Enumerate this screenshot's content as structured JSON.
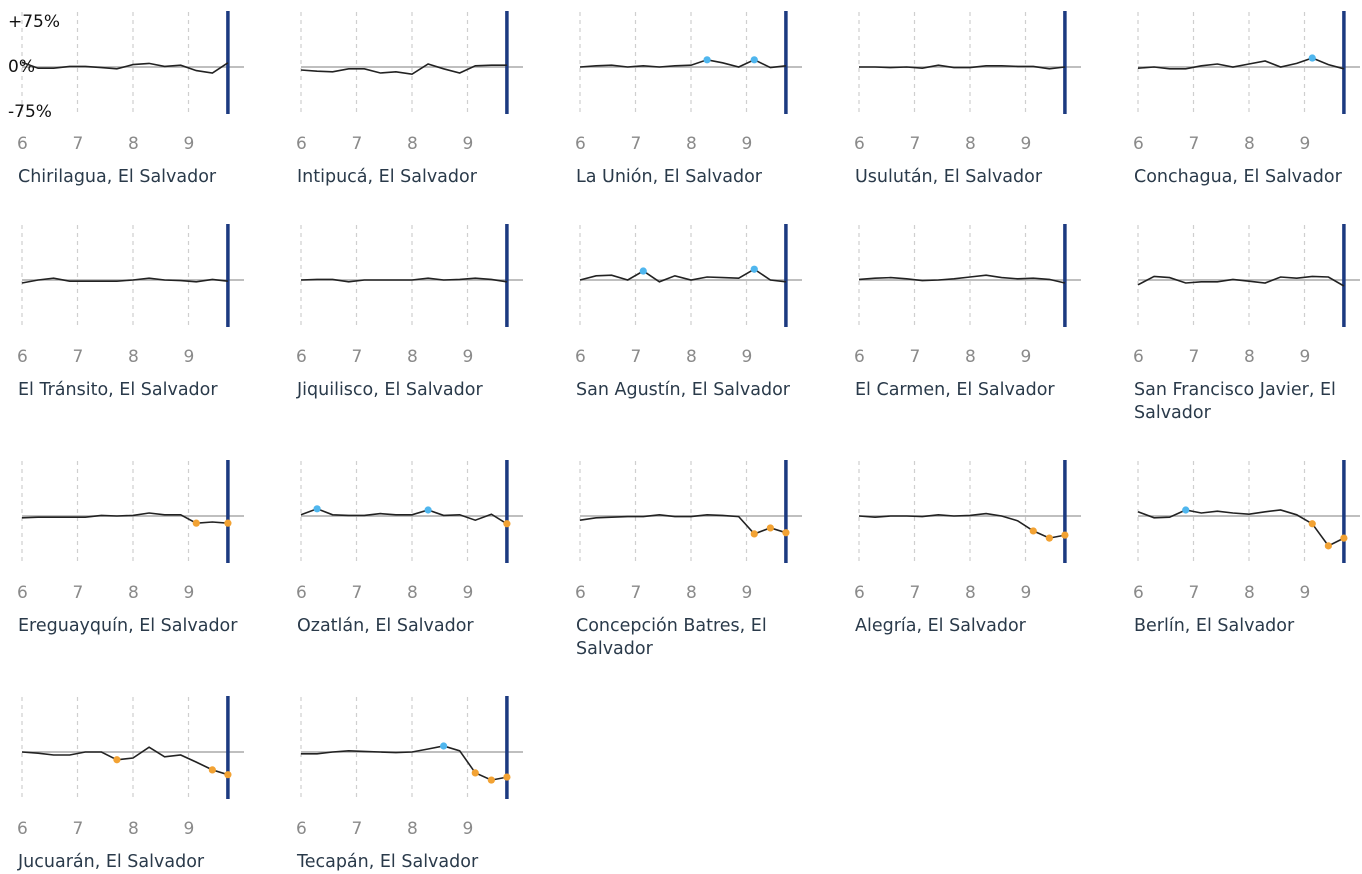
{
  "chart_data": [
    {
      "type": "line",
      "title": "Chirilagua, El Salvador",
      "x": [
        6,
        6.29,
        6.57,
        6.86,
        7.14,
        7.43,
        7.71,
        8,
        8.29,
        8.57,
        8.86,
        9.14,
        9.43,
        9.71
      ],
      "values": [
        8,
        -2,
        -2,
        1,
        1,
        -1,
        -3,
        4,
        6,
        1,
        3,
        -6,
        -10,
        7
      ],
      "point_colors": [
        null,
        null,
        null,
        null,
        null,
        null,
        null,
        null,
        null,
        null,
        null,
        null,
        null,
        null
      ],
      "color": "#222222",
      "marker_color": "#1c3a80",
      "xlim": [
        6,
        10
      ],
      "ylim": [
        -77,
        92
      ],
      "xticks": [
        6,
        7,
        8,
        9
      ],
      "yticks": [
        {
          "value": 75,
          "label": "+75%"
        },
        {
          "value": 0,
          "label": "0%"
        },
        {
          "value": -75,
          "label": "-75%"
        }
      ],
      "zero_line": true,
      "grid": true
    },
    {
      "type": "line",
      "title": "Intipucá, El Salvador",
      "x": [
        6,
        6.29,
        6.57,
        6.86,
        7.14,
        7.43,
        7.71,
        8,
        8.29,
        8.57,
        8.86,
        9.14,
        9.43,
        9.71
      ],
      "values": [
        -5,
        -7,
        -8,
        -3,
        -3,
        -10,
        -8,
        -12,
        5,
        -3,
        -10,
        2,
        3,
        3
      ],
      "point_colors": [
        null,
        null,
        null,
        null,
        null,
        null,
        null,
        null,
        null,
        null,
        null,
        null,
        null,
        null
      ],
      "color": "#222222",
      "marker_color": "#1c3a80",
      "xlim": [
        6,
        10
      ],
      "ylim": [
        -77,
        92
      ],
      "xticks": [
        6,
        7,
        8,
        9
      ],
      "zero_line": true,
      "grid": true
    },
    {
      "type": "line",
      "title": "La Unión, El Salvador",
      "x": [
        6,
        6.29,
        6.57,
        6.86,
        7.14,
        7.43,
        7.71,
        8,
        8.29,
        8.57,
        8.86,
        9.14,
        9.43,
        9.71
      ],
      "values": [
        0,
        2,
        3,
        0,
        2,
        0,
        2,
        3,
        12,
        7,
        0,
        12,
        -1,
        2
      ],
      "point_colors": [
        null,
        null,
        null,
        null,
        null,
        null,
        null,
        null,
        "#4fb6ee",
        null,
        null,
        "#4fb6ee",
        null,
        null
      ],
      "color": "#222222",
      "marker_color": "#1c3a80",
      "xlim": [
        6,
        10
      ],
      "ylim": [
        -77,
        92
      ],
      "xticks": [
        6,
        7,
        8,
        9
      ],
      "zero_line": true,
      "grid": true
    },
    {
      "type": "line",
      "title": "Usulután, El Salvador",
      "x": [
        6,
        6.29,
        6.57,
        6.86,
        7.14,
        7.43,
        7.71,
        8,
        8.29,
        8.57,
        8.86,
        9.14,
        9.43,
        9.71
      ],
      "values": [
        0,
        0,
        -1,
        0,
        -2,
        3,
        -1,
        -1,
        2,
        2,
        1,
        1,
        -3,
        0
      ],
      "point_colors": [
        null,
        null,
        null,
        null,
        null,
        null,
        null,
        null,
        null,
        null,
        null,
        null,
        null,
        null
      ],
      "color": "#222222",
      "marker_color": "#1c3a80",
      "xlim": [
        6,
        10
      ],
      "ylim": [
        -77,
        92
      ],
      "xticks": [
        6,
        7,
        8,
        9
      ],
      "zero_line": true,
      "grid": true
    },
    {
      "type": "line",
      "title": "Conchagua, El Salvador",
      "x": [
        6,
        6.29,
        6.57,
        6.86,
        7.14,
        7.43,
        7.71,
        8,
        8.29,
        8.57,
        8.86,
        9.14,
        9.43,
        9.71
      ],
      "values": [
        -2,
        0,
        -3,
        -3,
        2,
        5,
        0,
        5,
        10,
        0,
        6,
        15,
        4,
        -3
      ],
      "point_colors": [
        null,
        null,
        null,
        null,
        null,
        null,
        null,
        null,
        null,
        null,
        null,
        "#4fb6ee",
        null,
        null
      ],
      "color": "#222222",
      "marker_color": "#1c3a80",
      "xlim": [
        6,
        10
      ],
      "ylim": [
        -77,
        92
      ],
      "xticks": [
        6,
        7,
        8,
        9
      ],
      "zero_line": true,
      "grid": true
    },
    {
      "type": "line",
      "title": "El Tránsito, El Salvador",
      "x": [
        6,
        6.29,
        6.57,
        6.86,
        7.14,
        7.43,
        7.71,
        8,
        8.29,
        8.57,
        8.86,
        9.14,
        9.43,
        9.71
      ],
      "values": [
        -5,
        0,
        3,
        -2,
        -2,
        -2,
        -2,
        0,
        3,
        0,
        -1,
        -3,
        1,
        -2
      ],
      "point_colors": [
        null,
        null,
        null,
        null,
        null,
        null,
        null,
        null,
        null,
        null,
        null,
        null,
        null,
        null
      ],
      "color": "#222222",
      "marker_color": "#1c3a80",
      "xlim": [
        6,
        10
      ],
      "ylim": [
        -77,
        92
      ],
      "xticks": [
        6,
        7,
        8,
        9
      ],
      "zero_line": true,
      "grid": true
    },
    {
      "type": "line",
      "title": "Jiquilisco, El Salvador",
      "x": [
        6,
        6.29,
        6.57,
        6.86,
        7.14,
        7.43,
        7.71,
        8,
        8.29,
        8.57,
        8.86,
        9.14,
        9.43,
        9.71
      ],
      "values": [
        0,
        1,
        1,
        -3,
        0,
        0,
        0,
        0,
        3,
        0,
        1,
        3,
        1,
        -3
      ],
      "point_colors": [
        null,
        null,
        null,
        null,
        null,
        null,
        null,
        null,
        null,
        null,
        null,
        null,
        null,
        null
      ],
      "color": "#222222",
      "marker_color": "#1c3a80",
      "xlim": [
        6,
        10
      ],
      "ylim": [
        -77,
        92
      ],
      "xticks": [
        6,
        7,
        8,
        9
      ],
      "zero_line": true,
      "grid": true
    },
    {
      "type": "line",
      "title": "San Agustín, El Salvador",
      "x": [
        6,
        6.29,
        6.57,
        6.86,
        7.14,
        7.43,
        7.71,
        8,
        8.29,
        8.57,
        8.86,
        9.14,
        9.43,
        9.71
      ],
      "values": [
        0,
        7,
        8,
        0,
        15,
        -3,
        7,
        0,
        5,
        4,
        3,
        18,
        0,
        -3
      ],
      "point_colors": [
        null,
        null,
        null,
        null,
        "#4fb6ee",
        null,
        null,
        null,
        null,
        null,
        null,
        "#4fb6ee",
        null,
        null
      ],
      "color": "#222222",
      "marker_color": "#1c3a80",
      "xlim": [
        6,
        10
      ],
      "ylim": [
        -77,
        92
      ],
      "xticks": [
        6,
        7,
        8,
        9
      ],
      "zero_line": true,
      "grid": true
    },
    {
      "type": "line",
      "title": "El Carmen, El Salvador",
      "x": [
        6,
        6.29,
        6.57,
        6.86,
        7.14,
        7.43,
        7.71,
        8,
        8.29,
        8.57,
        8.86,
        9.14,
        9.43,
        9.71
      ],
      "values": [
        1,
        3,
        4,
        2,
        -1,
        0,
        2,
        5,
        8,
        4,
        2,
        3,
        1,
        -5
      ],
      "point_colors": [
        null,
        null,
        null,
        null,
        null,
        null,
        null,
        null,
        null,
        null,
        null,
        null,
        null,
        null
      ],
      "color": "#222222",
      "marker_color": "#1c3a80",
      "xlim": [
        6,
        10
      ],
      "ylim": [
        -77,
        92
      ],
      "xticks": [
        6,
        7,
        8,
        9
      ],
      "zero_line": true,
      "grid": true
    },
    {
      "type": "line",
      "title": "San Francisco Javier, El Salvador",
      "x": [
        6,
        6.29,
        6.57,
        6.86,
        7.14,
        7.43,
        7.71,
        8,
        8.29,
        8.57,
        8.86,
        9.14,
        9.43,
        9.71
      ],
      "values": [
        -8,
        6,
        4,
        -5,
        -3,
        -3,
        1,
        -2,
        -5,
        5,
        3,
        6,
        5,
        -10
      ],
      "point_colors": [
        null,
        null,
        null,
        null,
        null,
        null,
        null,
        null,
        null,
        null,
        null,
        null,
        null,
        null
      ],
      "color": "#222222",
      "marker_color": "#1c3a80",
      "xlim": [
        6,
        10
      ],
      "ylim": [
        -77,
        92
      ],
      "xticks": [
        6,
        7,
        8,
        9
      ],
      "zero_line": true,
      "grid": true
    },
    {
      "type": "line",
      "title": "Ereguayquín, El Salvador",
      "x": [
        6,
        6.29,
        6.57,
        6.86,
        7.14,
        7.43,
        7.71,
        8,
        8.29,
        8.57,
        8.86,
        9.14,
        9.43,
        9.71
      ],
      "values": [
        -3,
        -2,
        -2,
        -2,
        -2,
        1,
        0,
        1,
        5,
        2,
        2,
        -12,
        -10,
        -12
      ],
      "point_colors": [
        null,
        null,
        null,
        null,
        null,
        null,
        null,
        null,
        null,
        null,
        null,
        "#f2a233",
        null,
        "#f2a233"
      ],
      "color": "#222222",
      "marker_color": "#1c3a80",
      "xlim": [
        6,
        10
      ],
      "ylim": [
        -77,
        92
      ],
      "xticks": [
        6,
        7,
        8,
        9
      ],
      "zero_line": true,
      "grid": true
    },
    {
      "type": "line",
      "title": "Ozatlán, El Salvador",
      "x": [
        6,
        6.29,
        6.57,
        6.86,
        7.14,
        7.43,
        7.71,
        8,
        8.29,
        8.57,
        8.86,
        9.14,
        9.43,
        9.71
      ],
      "values": [
        2,
        12,
        2,
        1,
        1,
        4,
        2,
        2,
        10,
        1,
        2,
        -7,
        3,
        -13
      ],
      "point_colors": [
        null,
        "#4fb6ee",
        null,
        null,
        null,
        null,
        null,
        null,
        "#4fb6ee",
        null,
        null,
        null,
        null,
        "#f2a233"
      ],
      "color": "#222222",
      "marker_color": "#1c3a80",
      "xlim": [
        6,
        10
      ],
      "ylim": [
        -77,
        92
      ],
      "xticks": [
        6,
        7,
        8,
        9
      ],
      "zero_line": true,
      "grid": true
    },
    {
      "type": "line",
      "title": "Concepción Batres, El Salvador",
      "x": [
        6,
        6.29,
        6.57,
        6.86,
        7.14,
        7.43,
        7.71,
        8,
        8.29,
        8.57,
        8.86,
        9.14,
        9.43,
        9.71
      ],
      "values": [
        -7,
        -3,
        -2,
        -1,
        -1,
        2,
        -1,
        -1,
        2,
        1,
        -1,
        -30,
        -20,
        -28
      ],
      "point_colors": [
        null,
        null,
        null,
        null,
        null,
        null,
        null,
        null,
        null,
        null,
        null,
        "#f2a233",
        "#f2a233",
        "#f2a233"
      ],
      "color": "#222222",
      "marker_color": "#1c3a80",
      "xlim": [
        6,
        10
      ],
      "ylim": [
        -77,
        92
      ],
      "xticks": [
        6,
        7,
        8,
        9
      ],
      "zero_line": true,
      "grid": true
    },
    {
      "type": "line",
      "title": "Alegría, El Salvador",
      "x": [
        6,
        6.29,
        6.57,
        6.86,
        7.14,
        7.43,
        7.71,
        8,
        8.29,
        8.57,
        8.86,
        9.14,
        9.43,
        9.71
      ],
      "values": [
        0,
        -2,
        0,
        0,
        -1,
        2,
        0,
        1,
        4,
        0,
        -8,
        -25,
        -37,
        -32
      ],
      "point_colors": [
        null,
        null,
        null,
        null,
        null,
        null,
        null,
        null,
        null,
        null,
        null,
        "#f2a233",
        "#f2a233",
        "#f2a233"
      ],
      "color": "#222222",
      "marker_color": "#1c3a80",
      "xlim": [
        6,
        10
      ],
      "ylim": [
        -77,
        92
      ],
      "xticks": [
        6,
        7,
        8,
        9
      ],
      "zero_line": true,
      "grid": true
    },
    {
      "type": "line",
      "title": "Berlín, El Salvador",
      "x": [
        6,
        6.29,
        6.57,
        6.86,
        7.14,
        7.43,
        7.71,
        8,
        8.29,
        8.57,
        8.86,
        9.14,
        9.43,
        9.71
      ],
      "values": [
        7,
        -3,
        -2,
        10,
        5,
        8,
        5,
        3,
        7,
        10,
        2,
        -13,
        -50,
        -37
      ],
      "point_colors": [
        null,
        null,
        null,
        "#4fb6ee",
        null,
        null,
        null,
        null,
        null,
        null,
        null,
        "#f2a233",
        "#f2a233",
        "#f2a233"
      ],
      "color": "#222222",
      "marker_color": "#1c3a80",
      "xlim": [
        6,
        10
      ],
      "ylim": [
        -77,
        92
      ],
      "xticks": [
        6,
        7,
        8,
        9
      ],
      "zero_line": true,
      "grid": true
    },
    {
      "type": "line",
      "title": "Jucuarán, El Salvador",
      "x": [
        6,
        6.29,
        6.57,
        6.86,
        7.14,
        7.43,
        7.71,
        8,
        8.29,
        8.57,
        8.86,
        9.14,
        9.43,
        9.71
      ],
      "values": [
        0,
        -2,
        -5,
        -5,
        0,
        0,
        -13,
        -10,
        8,
        -8,
        -5,
        -17,
        -30,
        -38
      ],
      "point_colors": [
        null,
        null,
        null,
        null,
        null,
        null,
        "#f2a233",
        null,
        null,
        null,
        null,
        null,
        "#f2a233",
        "#f2a233"
      ],
      "color": "#222222",
      "marker_color": "#1c3a80",
      "xlim": [
        6,
        10
      ],
      "ylim": [
        -77,
        92
      ],
      "xticks": [
        6,
        7,
        8,
        9
      ],
      "zero_line": true,
      "grid": true
    },
    {
      "type": "line",
      "title": "Tecapán, El Salvador",
      "x": [
        6,
        6.29,
        6.57,
        6.86,
        7.14,
        7.43,
        7.71,
        8,
        8.29,
        8.57,
        8.86,
        9.14,
        9.43,
        9.71
      ],
      "values": [
        -3,
        -3,
        0,
        2,
        1,
        0,
        -1,
        0,
        5,
        10,
        2,
        -35,
        -47,
        -42
      ],
      "point_colors": [
        null,
        null,
        null,
        null,
        null,
        null,
        null,
        null,
        null,
        "#4fb6ee",
        null,
        "#f2a233",
        "#f2a233",
        "#f2a233"
      ],
      "color": "#222222",
      "marker_color": "#1c3a80",
      "xlim": [
        6,
        10
      ],
      "ylim": [
        -77,
        92
      ],
      "xticks": [
        6,
        7,
        8,
        9
      ],
      "zero_line": true,
      "grid": true
    }
  ]
}
